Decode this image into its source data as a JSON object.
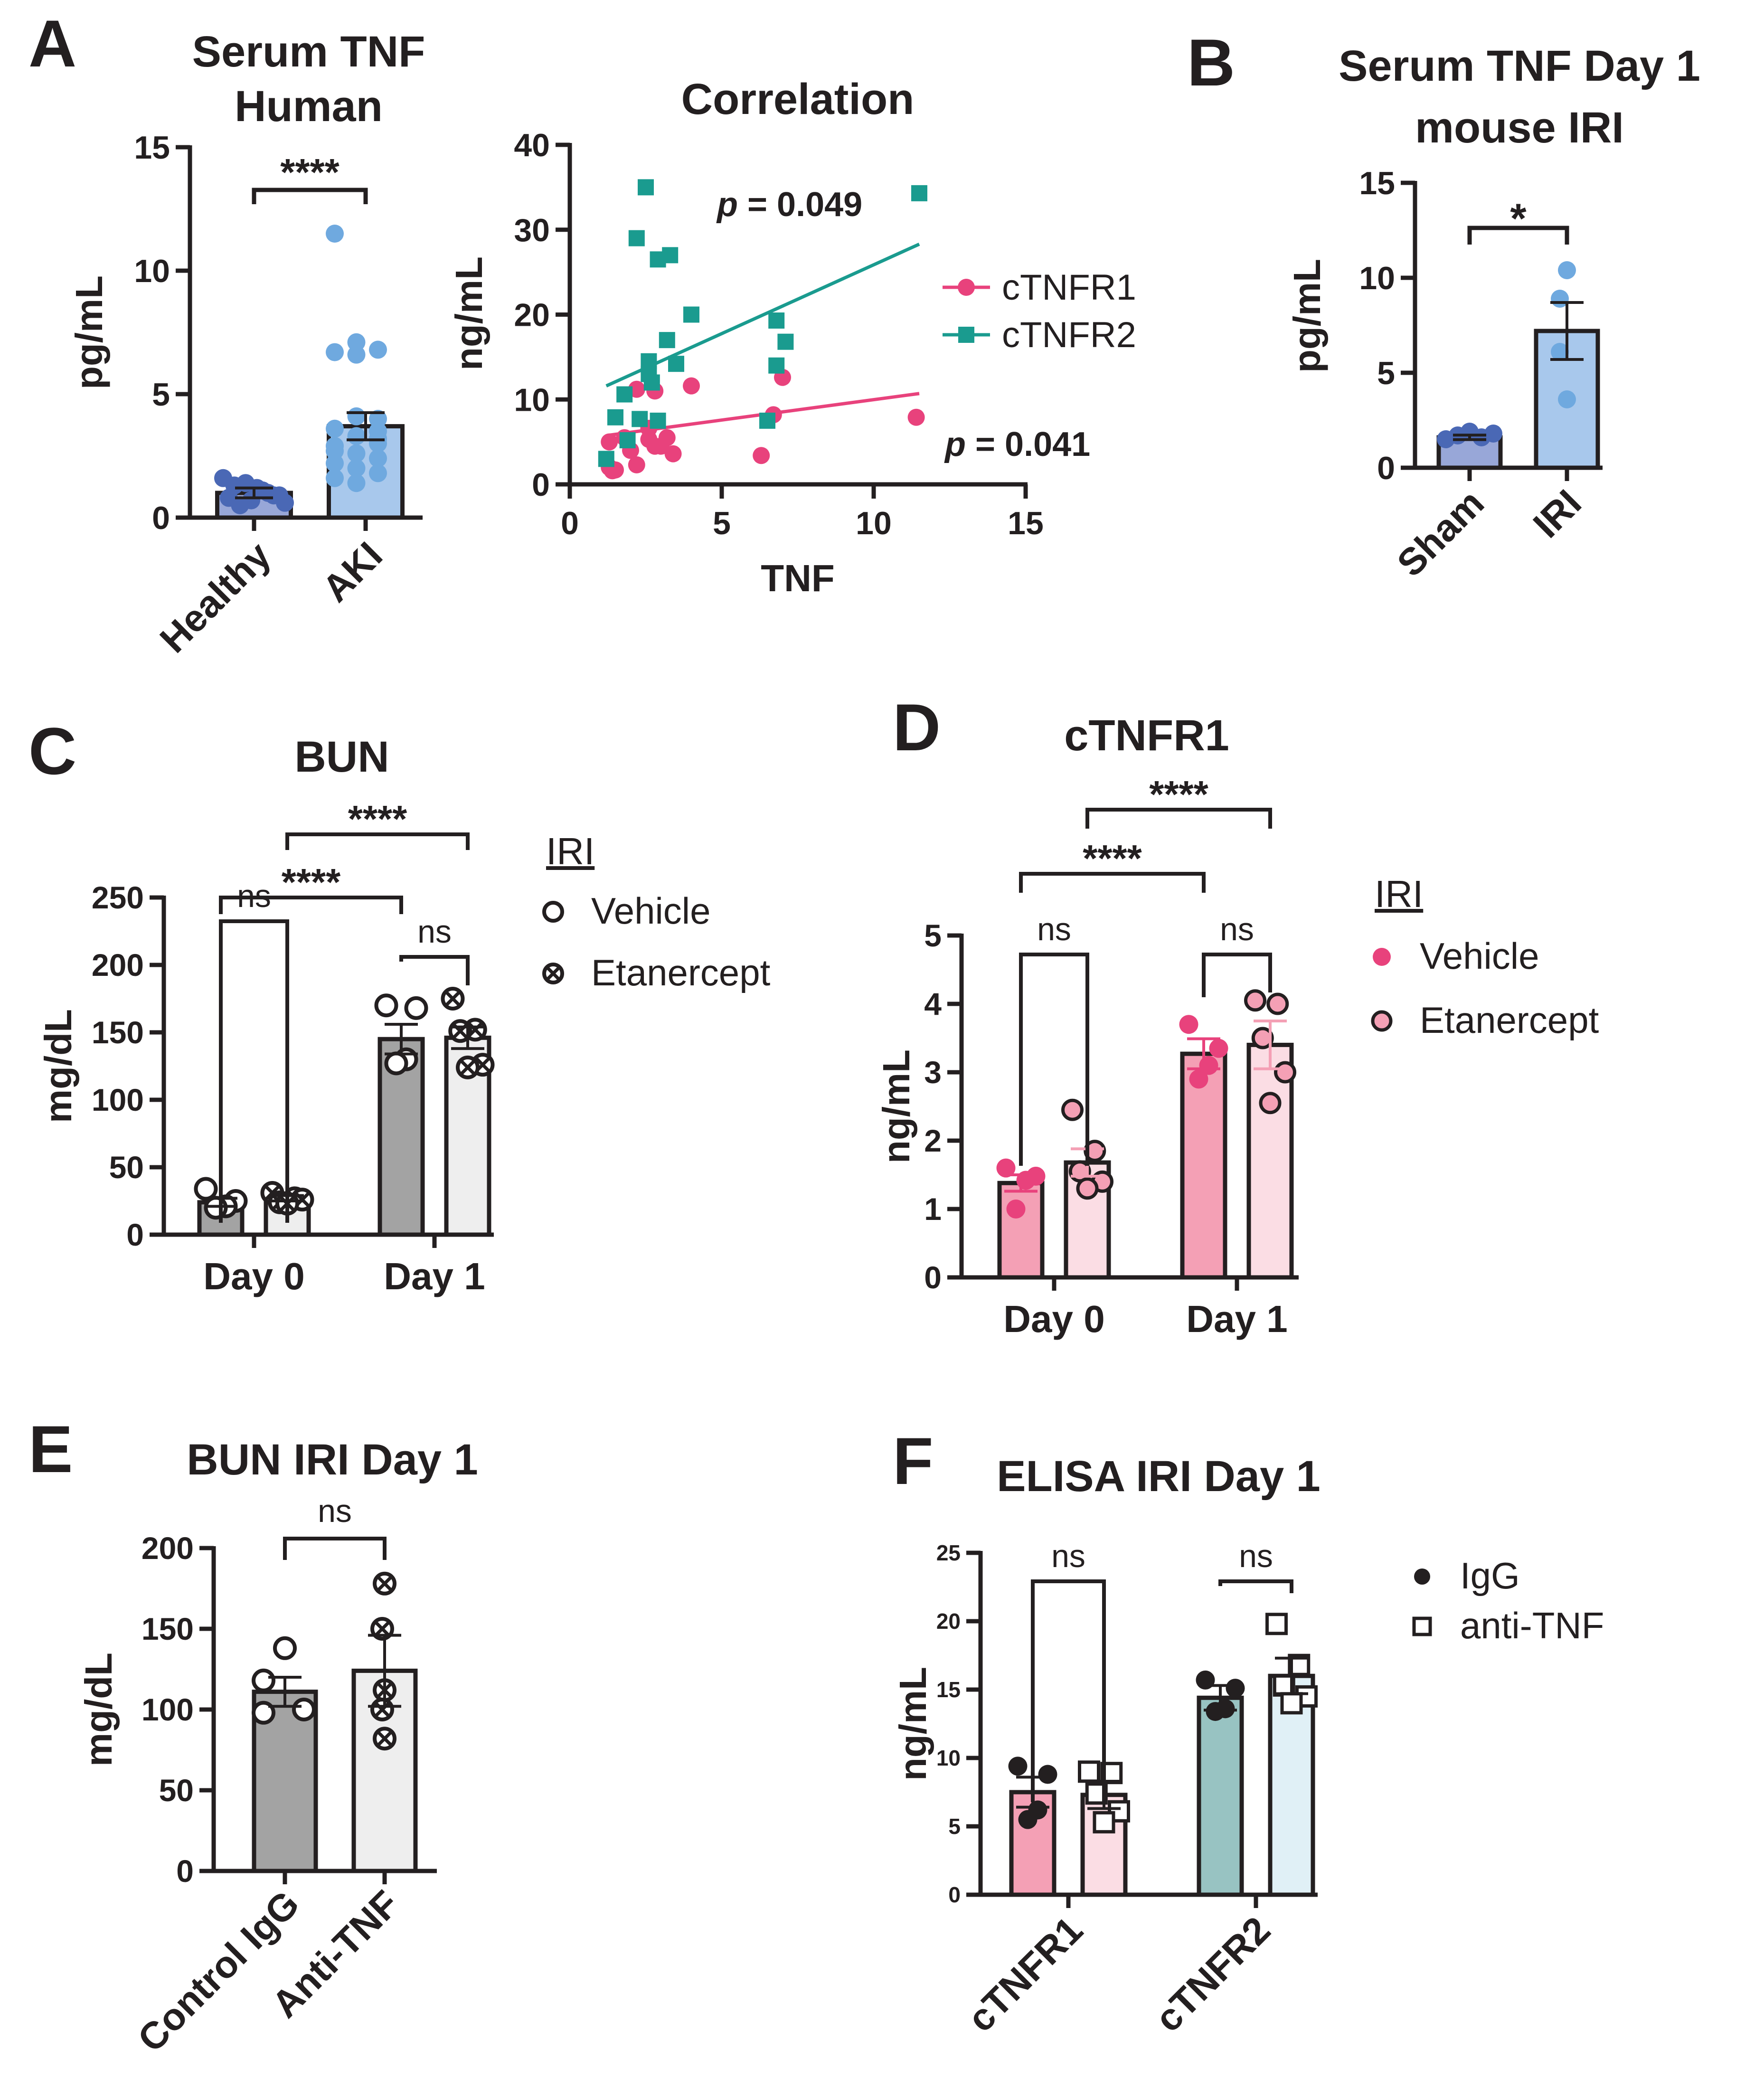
{
  "colors": {
    "ink": "#231f20",
    "human_healthy": "#4a68b5",
    "human_aki": "#6fa9df",
    "bar_healthy": "#98a7d8",
    "bar_aki": "#a8c8ec",
    "tnfr1": "#e8427c",
    "tnfr2": "#1a9b8f",
    "bar_dark_gray": "#a3a3a3",
    "bar_light_gray": "#eeeeee",
    "pink_dark": "#f4a0b5",
    "pink_light": "#fbdde4",
    "teal_bar": "#98c3c2",
    "ice_bar": "#e0f0f6"
  },
  "panels": {
    "A": "A",
    "B": "B",
    "C": "C",
    "D": "D",
    "E": "E",
    "F": "F"
  },
  "chart_data": [
    {
      "id": "A1",
      "type": "bar",
      "title": [
        "Serum TNF",
        "Human"
      ],
      "ylabel": "pg/mL",
      "ylim": [
        0,
        15
      ],
      "yticks": [
        "0",
        "5",
        "10",
        "15"
      ],
      "categories": [
        "Healthy",
        "AKI"
      ],
      "values": [
        1.0,
        3.7
      ],
      "errors": [
        0.2,
        0.55
      ],
      "points": [
        [
          1.6,
          1.1,
          1.3,
          0.9,
          1.4,
          0.6,
          1.2,
          0.8,
          1.0,
          0.5,
          0.9,
          0.7
        ],
        [
          11.5,
          7.1,
          6.8,
          6.7,
          6.6,
          4.0,
          3.6,
          3.3,
          3.0,
          2.9,
          2.6,
          2.4,
          2.2,
          2.0,
          1.8,
          1.6,
          1.4,
          3.5,
          2.7,
          4.1,
          3.2
        ]
      ],
      "significance": [
        {
          "from": 0,
          "to": 1,
          "label": "****"
        }
      ]
    },
    {
      "id": "A2",
      "type": "scatter",
      "title": "Correlation",
      "xlabel": "TNF",
      "ylabel": "ng/mL",
      "xlim": [
        0,
        15
      ],
      "ylim": [
        0,
        40
      ],
      "xticks": [
        "0",
        "5",
        "10",
        "15"
      ],
      "yticks": [
        "0",
        "10",
        "20",
        "30",
        "40"
      ],
      "series": [
        {
          "name": "cTNFR1",
          "marker": "circle",
          "points": [
            [
              1.3,
              2.0
            ],
            [
              1.4,
              1.6
            ],
            [
              1.3,
              5.0
            ],
            [
              1.5,
              1.7
            ],
            [
              1.8,
              5.5
            ],
            [
              2.0,
              4.0
            ],
            [
              2.2,
              11.2
            ],
            [
              2.2,
              2.3
            ],
            [
              2.6,
              6.6
            ],
            [
              2.6,
              5.3
            ],
            [
              2.8,
              11.0
            ],
            [
              2.8,
              4.5
            ],
            [
              3.0,
              4.5
            ],
            [
              3.2,
              5.5
            ],
            [
              3.4,
              3.6
            ],
            [
              4.0,
              11.6
            ],
            [
              6.3,
              3.4
            ],
            [
              6.7,
              8.2
            ],
            [
              7.0,
              12.6
            ],
            [
              11.4,
              7.9
            ]
          ],
          "fit": [
            [
              1.3,
              5.8
            ],
            [
              11.5,
              10.7
            ]
          ],
          "annotation": "p = 0.041"
        },
        {
          "name": "cTNFR2",
          "marker": "square",
          "points": [
            [
              1.2,
              3.0
            ],
            [
              1.5,
              7.9
            ],
            [
              1.8,
              10.6
            ],
            [
              1.9,
              5.2
            ],
            [
              2.2,
              29.0
            ],
            [
              2.3,
              7.7
            ],
            [
              2.5,
              35.0
            ],
            [
              2.6,
              13.0
            ],
            [
              2.6,
              14.5
            ],
            [
              2.7,
              12.0
            ],
            [
              2.9,
              26.5
            ],
            [
              2.9,
              7.5
            ],
            [
              3.2,
              17.0
            ],
            [
              3.3,
              27.0
            ],
            [
              3.5,
              14.2
            ],
            [
              4.0,
              20.0
            ],
            [
              6.5,
              7.5
            ],
            [
              6.8,
              19.3
            ],
            [
              6.8,
              14.0
            ],
            [
              7.1,
              16.8
            ],
            [
              11.5,
              34.3
            ]
          ],
          "fit": [
            [
              1.2,
              11.6
            ],
            [
              11.5,
              28.3
            ]
          ],
          "annotation": "p = 0.049"
        }
      ]
    },
    {
      "id": "B",
      "type": "bar",
      "title": [
        "Serum TNF Day 1",
        "mouse IRI"
      ],
      "ylabel": "pg/mL",
      "ylim": [
        0,
        15
      ],
      "yticks": [
        "0",
        "5",
        "10",
        "15"
      ],
      "categories": [
        "Sham",
        "IRI"
      ],
      "values": [
        1.6,
        7.2
      ],
      "errors": [
        0.12,
        1.5
      ],
      "points": [
        [
          1.5,
          1.7,
          1.9,
          1.6,
          1.8
        ],
        [
          10.4,
          8.9,
          6.1,
          3.6
        ]
      ],
      "significance": [
        {
          "from": 0,
          "to": 1,
          "label": "*"
        }
      ]
    },
    {
      "id": "C",
      "type": "bar",
      "title": "BUN",
      "ylabel": "mg/dL",
      "ylim": [
        0,
        250
      ],
      "yticks": [
        "0",
        "50",
        "100",
        "150",
        "200",
        "250"
      ],
      "categories": [
        "Day 0",
        "Day 1"
      ],
      "legend_title": "IRI",
      "series": [
        {
          "name": "Vehicle",
          "marker": "open-circle",
          "values": [
            24,
            145
          ],
          "errors": [
            3,
            11
          ],
          "points": [
            [
              34,
              25,
              21,
              20
            ],
            [
              170,
              168,
              130,
              127
            ]
          ]
        },
        {
          "name": "Etanercept",
          "marker": "crossed-circle",
          "values": [
            27,
            146
          ],
          "errors": [
            2,
            8
          ],
          "points": [
            [
              31,
              27,
              24,
              26,
              23
            ],
            [
              175,
              152,
              151,
              126,
              124
            ]
          ]
        }
      ],
      "significance": [
        {
          "bars": [
            [
              0,
              0
            ],
            [
              0,
              1
            ]
          ],
          "label": "ns"
        },
        {
          "bars": [
            [
              1,
              0
            ],
            [
              1,
              1
            ]
          ],
          "label": "ns"
        },
        {
          "bars": [
            [
              0,
              0
            ],
            [
              1,
              0
            ]
          ],
          "label": "****"
        },
        {
          "bars": [
            [
              0,
              1
            ],
            [
              1,
              1
            ]
          ],
          "label": "****"
        }
      ]
    },
    {
      "id": "D",
      "type": "bar",
      "title": "cTNFR1",
      "ylabel": "ng/mL",
      "ylim": [
        0,
        5
      ],
      "yticks": [
        "0",
        "1",
        "2",
        "3",
        "4",
        "5"
      ],
      "categories": [
        "Day 0",
        "Day 1"
      ],
      "legend_title": "IRI",
      "series": [
        {
          "name": "Vehicle",
          "marker": "filled-pink",
          "values": [
            1.38,
            3.27
          ],
          "errors": [
            0.12,
            0.22
          ],
          "points": [
            [
              1.6,
              1.48,
              1.42,
              1.0
            ],
            [
              3.7,
              3.35,
              3.1,
              2.9
            ]
          ]
        },
        {
          "name": "Etanercept",
          "marker": "filled-lightpink",
          "values": [
            1.68,
            3.4
          ],
          "errors": [
            0.2,
            0.35
          ],
          "points": [
            [
              2.45,
              1.85,
              1.55,
              1.4,
              1.3
            ],
            [
              4.05,
              4.0,
              3.5,
              3.0,
              2.55
            ]
          ]
        }
      ],
      "significance": [
        {
          "bars": [
            [
              0,
              0
            ],
            [
              0,
              1
            ]
          ],
          "label": "ns"
        },
        {
          "bars": [
            [
              1,
              0
            ],
            [
              1,
              1
            ]
          ],
          "label": "ns"
        },
        {
          "bars": [
            [
              0,
              0
            ],
            [
              1,
              0
            ]
          ],
          "label": "****"
        },
        {
          "bars": [
            [
              0,
              1
            ],
            [
              1,
              1
            ]
          ],
          "label": "****"
        }
      ]
    },
    {
      "id": "E",
      "type": "bar",
      "title": "BUN IRI Day 1",
      "ylabel": "mg/dL",
      "ylim": [
        0,
        200
      ],
      "yticks": [
        "0",
        "50",
        "100",
        "150",
        "200"
      ],
      "categories": [
        "Control IgG",
        "Anti-TNF"
      ],
      "values": [
        111,
        124
      ],
      "errors": [
        9,
        22
      ],
      "points": [
        [
          138,
          118,
          100,
          98
        ],
        [
          178,
          150,
          112,
          100,
          82
        ]
      ],
      "markers": [
        "open-circle",
        "crossed-circle"
      ],
      "significance": [
        {
          "from": 0,
          "to": 1,
          "label": "ns"
        }
      ]
    },
    {
      "id": "F",
      "type": "bar",
      "title": "ELISA IRI Day 1",
      "ylabel": "ng/mL",
      "ylim": [
        0,
        25
      ],
      "yticks": [
        "0",
        "5",
        "10",
        "15",
        "20",
        "25"
      ],
      "categories": [
        "cTNFR1",
        "cTNFR2"
      ],
      "series": [
        {
          "name": "IgG",
          "marker": "filled-circle",
          "values": [
            7.5,
            14.4
          ],
          "errors": [
            1.1,
            0.9
          ],
          "points": [
            [
              9.4,
              8.8,
              6.2,
              5.5
            ],
            [
              15.7,
              15.1,
              13.6,
              13.4
            ]
          ]
        },
        {
          "name": "anti-TNF",
          "marker": "open-square",
          "values": [
            7.3,
            16.0
          ],
          "errors": [
            1.0,
            1.3
          ],
          "points": [
            [
              9.0,
              8.9,
              7.4,
              6.1,
              5.3
            ],
            [
              19.8,
              16.8,
              15.3,
              14.5,
              14.0
            ]
          ]
        }
      ],
      "significance": [
        {
          "bars": [
            [
              0,
              0
            ],
            [
              0,
              1
            ]
          ],
          "label": "ns"
        },
        {
          "bars": [
            [
              1,
              0
            ],
            [
              1,
              1
            ]
          ],
          "label": "ns"
        }
      ]
    }
  ]
}
